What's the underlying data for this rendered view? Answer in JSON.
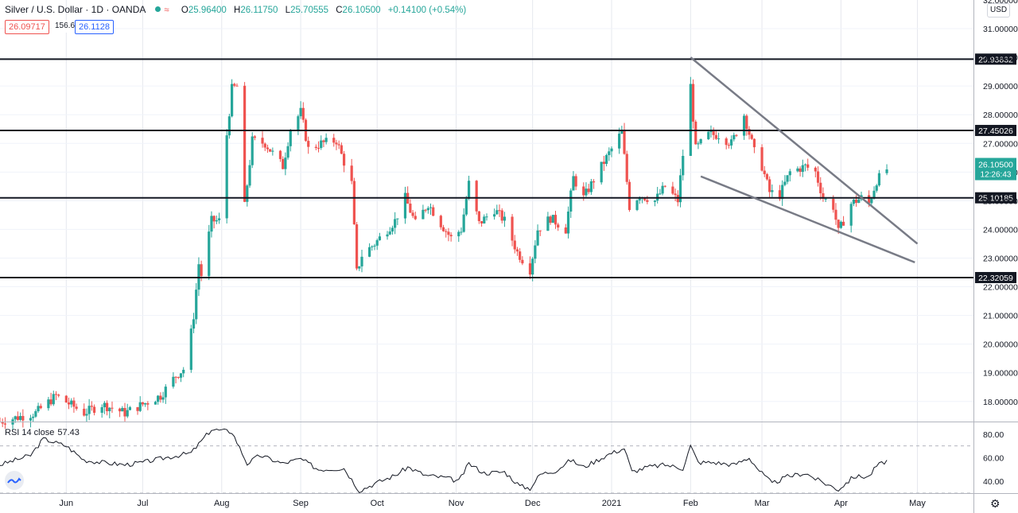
{
  "header": {
    "symbol": "Silver / U.S. Dollar · 1D · OANDA",
    "o_key": "O",
    "o_val": "25.96400",
    "h_key": "H",
    "h_val": "26.11750",
    "l_key": "L",
    "l_val": "25.70555",
    "c_key": "C",
    "c_val": "26.10500",
    "change": "+0.14100 (+0.54%)",
    "bid": "26.09717",
    "spread": "156.6",
    "ask": "26.1128",
    "currency": "USD"
  },
  "colors": {
    "up": "#26a69a",
    "down": "#ef5350",
    "line": "#131722",
    "trend": "#787b86"
  },
  "icons": [
    "status-dot-icon",
    "wave-icon",
    "tradingview-logo-icon",
    "gear-icon"
  ],
  "chart_data": {
    "type": "candlestick",
    "ylim": [
      17.3,
      32.0
    ],
    "y_ticks": [
      "18.00000",
      "19.00000",
      "20.00000",
      "21.00000",
      "22.00000",
      "23.00000",
      "24.00000",
      "25.00000",
      "26.00000",
      "27.00000",
      "28.00000",
      "29.00000",
      "30.00000",
      "31.00000",
      "32.00000"
    ],
    "x_labels": [
      "Jun",
      "Jul",
      "Aug",
      "Sep",
      "Oct",
      "Nov",
      "Dec",
      "2021",
      "Feb",
      "Mar",
      "Apr",
      "May"
    ],
    "x_label_dates": [
      "2020-06-01",
      "2020-07-01",
      "2020-08-01",
      "2020-09-01",
      "2020-10-01",
      "2020-11-01",
      "2020-12-01",
      "2021-01-01",
      "2021-02-01",
      "2021-03-01",
      "2021-04-01",
      "2021-05-01"
    ],
    "date_range": [
      "2020-05-06",
      "2021-05-23"
    ],
    "horizontal_levels": [
      {
        "value": 29.93832,
        "label": "29.93832"
      },
      {
        "value": 27.45026,
        "label": "27.45026"
      },
      {
        "value": 25.10185,
        "label": "25.10185"
      },
      {
        "value": 22.32059,
        "label": "22.32059"
      }
    ],
    "trend_lines": [
      {
        "from": {
          "date": "2021-02-01",
          "value": 30.0
        },
        "to": {
          "date": "2021-05-01",
          "value": 23.5
        }
      },
      {
        "from": {
          "date": "2021-02-05",
          "value": 25.85
        },
        "to": {
          "date": "2021-04-30",
          "value": 22.85
        }
      }
    ],
    "last_price": {
      "value": 26.105,
      "label": "26.10500",
      "countdown": "12:26:43"
    },
    "close_path": [
      [
        "2020-05-06",
        17.3
      ],
      [
        "2020-05-20",
        17.6
      ],
      [
        "2020-05-28",
        18.2
      ],
      [
        "2020-06-08",
        17.6
      ],
      [
        "2020-06-15",
        17.9
      ],
      [
        "2020-06-24",
        17.6
      ],
      [
        "2020-07-01",
        17.9
      ],
      [
        "2020-07-08",
        18.2
      ],
      [
        "2020-07-14",
        18.9
      ],
      [
        "2020-07-18",
        19.2
      ],
      [
        "2020-07-21",
        21.0
      ],
      [
        "2020-07-23",
        22.8
      ],
      [
        "2020-07-24",
        22.4
      ],
      [
        "2020-07-28",
        24.3
      ],
      [
        "2020-07-31",
        24.3
      ],
      [
        "2020-08-03",
        27.3
      ],
      [
        "2020-08-05",
        28.9
      ],
      [
        "2020-08-07",
        29.0
      ],
      [
        "2020-08-10",
        24.8
      ],
      [
        "2020-08-13",
        27.1
      ],
      [
        "2020-08-18",
        27.0
      ],
      [
        "2020-08-25",
        26.2
      ],
      [
        "2020-08-28",
        27.5
      ],
      [
        "2020-09-01",
        28.1
      ],
      [
        "2020-09-04",
        26.8
      ],
      [
        "2020-09-09",
        27.0
      ],
      [
        "2020-09-15",
        27.1
      ],
      [
        "2020-09-21",
        25.6
      ],
      [
        "2020-09-23",
        22.5
      ],
      [
        "2020-09-25",
        23.1
      ],
      [
        "2020-09-30",
        23.5
      ],
      [
        "2020-10-05",
        24.0
      ],
      [
        "2020-10-08",
        24.3
      ],
      [
        "2020-10-12",
        25.1
      ],
      [
        "2020-10-16",
        24.2
      ],
      [
        "2020-10-21",
        24.9
      ],
      [
        "2020-10-26",
        24.2
      ],
      [
        "2020-10-30",
        23.7
      ],
      [
        "2020-11-03",
        24.0
      ],
      [
        "2020-11-06",
        25.6
      ],
      [
        "2020-11-10",
        24.2
      ],
      [
        "2020-11-16",
        24.7
      ],
      [
        "2020-11-20",
        24.3
      ],
      [
        "2020-11-25",
        23.2
      ],
      [
        "2020-11-30",
        22.6
      ],
      [
        "2020-12-03",
        24.0
      ],
      [
        "2020-12-08",
        24.4
      ],
      [
        "2020-12-14",
        24.0
      ],
      [
        "2020-12-17",
        25.8
      ],
      [
        "2020-12-21",
        25.1
      ],
      [
        "2020-12-28",
        26.2
      ],
      [
        "2021-01-05",
        27.4
      ],
      [
        "2021-01-08",
        24.8
      ],
      [
        "2021-01-12",
        25.2
      ],
      [
        "2021-01-18",
        25.0
      ],
      [
        "2021-01-22",
        25.5
      ],
      [
        "2021-01-27",
        25.0
      ],
      [
        "2021-02-01",
        29.0
      ],
      [
        "2021-02-03",
        26.8
      ],
      [
        "2021-02-08",
        27.3
      ],
      [
        "2021-02-12",
        27.3
      ],
      [
        "2021-02-17",
        27.0
      ],
      [
        "2021-02-22",
        28.0
      ],
      [
        "2021-02-26",
        26.7
      ],
      [
        "2021-03-01",
        26.2
      ],
      [
        "2021-03-04",
        25.3
      ],
      [
        "2021-03-08",
        25.2
      ],
      [
        "2021-03-12",
        26.0
      ],
      [
        "2021-03-18",
        26.2
      ],
      [
        "2021-03-22",
        26.0
      ],
      [
        "2021-03-25",
        25.1
      ],
      [
        "2021-03-29",
        24.8
      ],
      [
        "2021-03-31",
        23.9
      ],
      [
        "2021-04-05",
        24.9
      ],
      [
        "2021-04-09",
        25.1
      ],
      [
        "2021-04-12",
        24.9
      ],
      [
        "2021-04-15",
        25.7
      ],
      [
        "2021-04-19",
        26.1
      ]
    ],
    "rsi": {
      "label": "RSI 14 close",
      "value": "57.43",
      "ylim": [
        30,
        90
      ],
      "y_ticks": [
        "40.00",
        "60.00",
        "80.00"
      ],
      "bands": [
        30,
        70
      ],
      "path": [
        [
          "2020-05-06",
          54
        ],
        [
          "2020-05-18",
          62
        ],
        [
          "2020-05-23",
          76
        ],
        [
          "2020-06-01",
          70
        ],
        [
          "2020-06-08",
          58
        ],
        [
          "2020-06-15",
          56
        ],
        [
          "2020-06-24",
          54
        ],
        [
          "2020-07-01",
          56
        ],
        [
          "2020-07-10",
          60
        ],
        [
          "2020-07-20",
          64
        ],
        [
          "2020-07-28",
          84
        ],
        [
          "2020-08-05",
          82
        ],
        [
          "2020-08-11",
          55
        ],
        [
          "2020-08-16",
          62
        ],
        [
          "2020-08-25",
          55
        ],
        [
          "2020-09-01",
          59
        ],
        [
          "2020-09-08",
          50
        ],
        [
          "2020-09-18",
          51
        ],
        [
          "2020-09-24",
          32
        ],
        [
          "2020-09-30",
          38
        ],
        [
          "2020-10-08",
          45
        ],
        [
          "2020-10-13",
          52
        ],
        [
          "2020-10-20",
          45
        ],
        [
          "2020-10-28",
          43
        ],
        [
          "2020-11-02",
          40
        ],
        [
          "2020-11-06",
          55
        ],
        [
          "2020-11-12",
          47
        ],
        [
          "2020-11-20",
          48
        ],
        [
          "2020-11-26",
          36
        ],
        [
          "2020-11-30",
          34
        ],
        [
          "2020-12-04",
          46
        ],
        [
          "2020-12-10",
          49
        ],
        [
          "2020-12-16",
          58
        ],
        [
          "2020-12-21",
          52
        ],
        [
          "2020-12-31",
          63
        ],
        [
          "2021-01-06",
          68
        ],
        [
          "2021-01-09",
          48
        ],
        [
          "2021-01-15",
          52
        ],
        [
          "2021-01-22",
          54
        ],
        [
          "2021-01-29",
          51
        ],
        [
          "2021-02-01",
          70
        ],
        [
          "2021-02-04",
          56
        ],
        [
          "2021-02-10",
          56
        ],
        [
          "2021-02-18",
          54
        ],
        [
          "2021-02-24",
          60
        ],
        [
          "2021-02-28",
          49
        ],
        [
          "2021-03-05",
          38
        ],
        [
          "2021-03-11",
          44
        ],
        [
          "2021-03-18",
          47
        ],
        [
          "2021-03-23",
          41
        ],
        [
          "2021-03-31",
          33
        ],
        [
          "2021-04-06",
          44
        ],
        [
          "2021-04-12",
          44
        ],
        [
          "2021-04-15",
          53
        ],
        [
          "2021-04-19",
          57.43
        ]
      ]
    }
  }
}
